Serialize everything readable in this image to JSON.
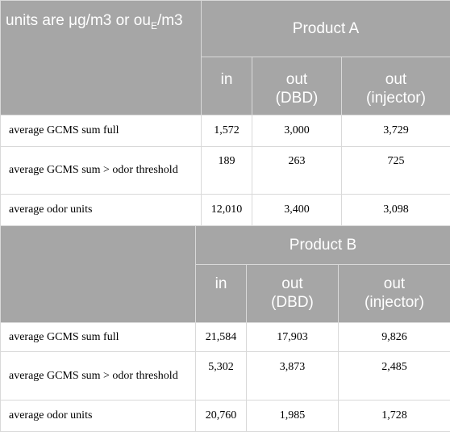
{
  "corner": {
    "prefix": "units are μg/m3 or ou",
    "sub": "E",
    "suffix": "/m3"
  },
  "product_a": {
    "title": "Product A",
    "columns": {
      "in": "in",
      "out_dbd_1": "out",
      "out_dbd_2": "(DBD)",
      "out_inj_1": "out",
      "out_inj_2": "(injector)"
    },
    "rows": [
      {
        "label": "average GCMS sum full",
        "in": "1,572",
        "dbd": "3,000",
        "inj": "3,729"
      },
      {
        "label": "average GCMS sum > odor threshold",
        "in": "189",
        "dbd": "263",
        "inj": "725"
      },
      {
        "label": "average odor units",
        "in": "12,010",
        "dbd": "3,400",
        "inj": "3,098"
      }
    ]
  },
  "product_b": {
    "title": "Product B",
    "columns": {
      "in": "in",
      "out_dbd_1": "out",
      "out_dbd_2": "(DBD)",
      "out_inj_1": "out",
      "out_inj_2": "(injector)"
    },
    "rows": [
      {
        "label": "average GCMS sum full",
        "in": "21,584",
        "dbd": "17,903",
        "inj": "9,826"
      },
      {
        "label": "average GCMS sum > odor threshold",
        "in": "5,302",
        "dbd": "3,873",
        "inj": "2,485"
      },
      {
        "label": "average odor units",
        "in": "20,760",
        "dbd": "1,985",
        "inj": "1,728"
      }
    ]
  }
}
